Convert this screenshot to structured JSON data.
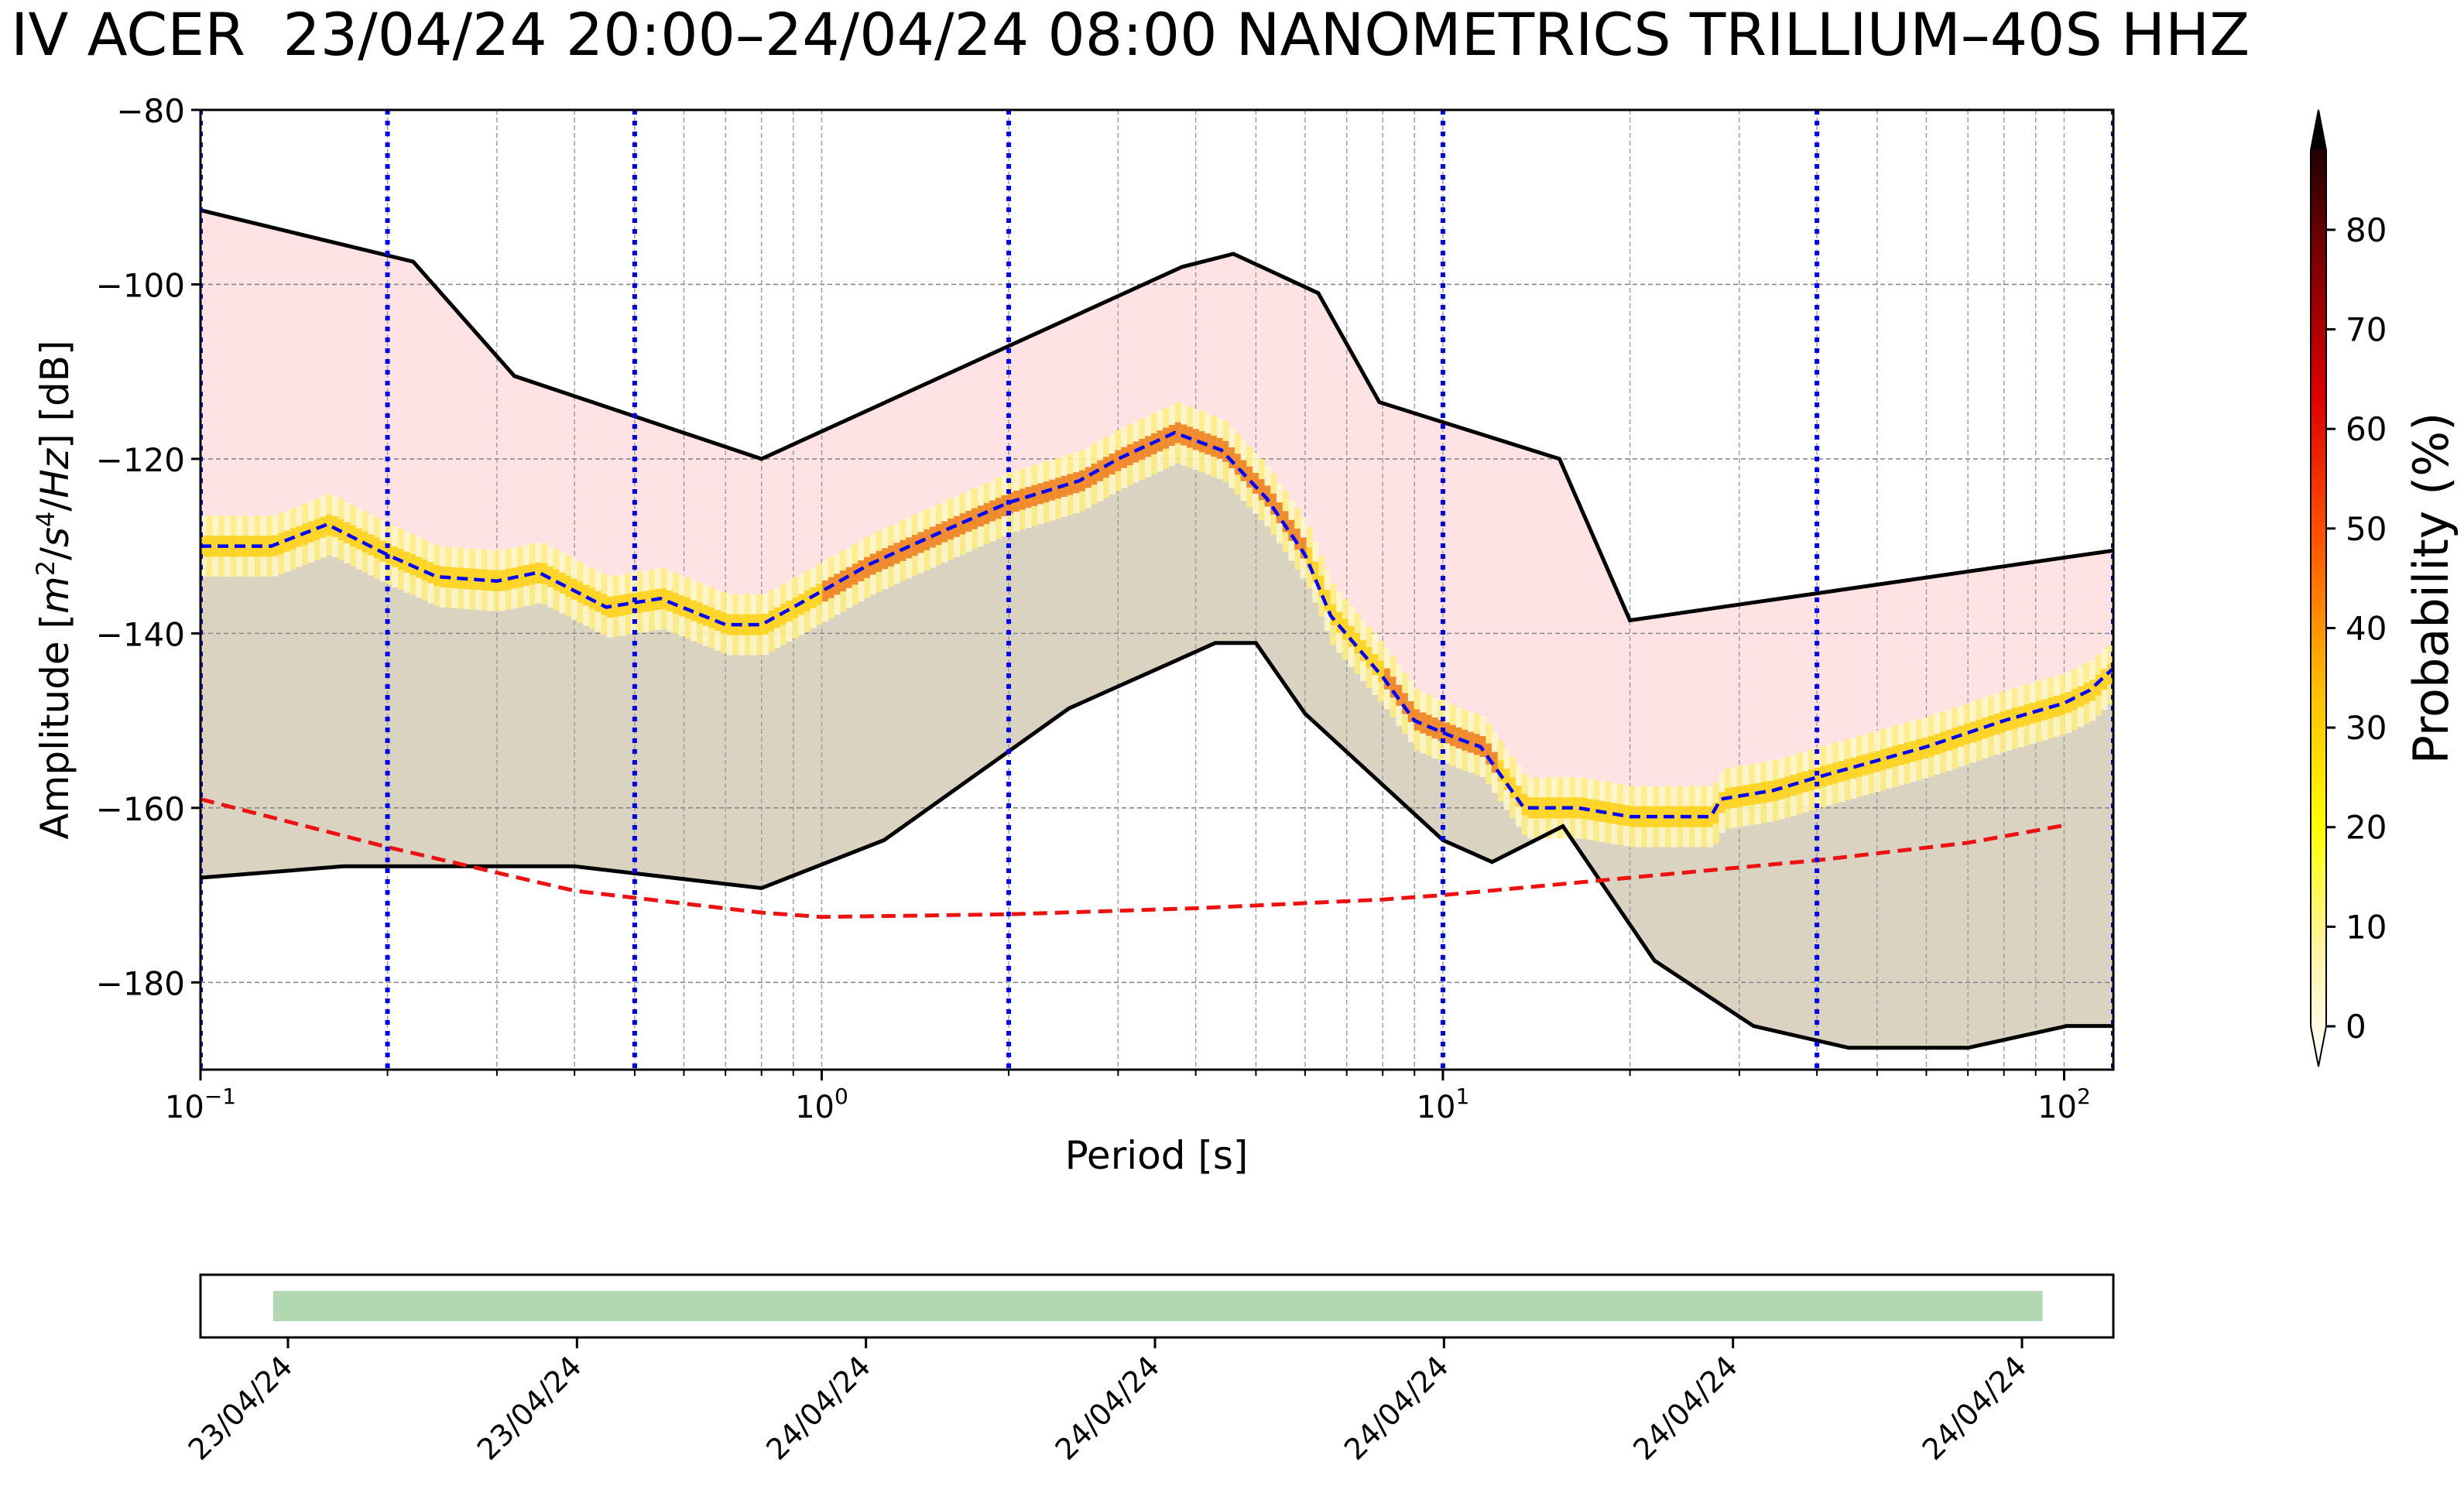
{
  "title": "IV ACER  23/04/24 20:00–24/04/24 08:00 NANOMETRICS TRILLIUM–40S HHZ",
  "chart_data": {
    "type": "ppsd",
    "xlabel": "Period [s]",
    "ylabel": "Amplitude [m²/s⁴/Hz] [dB]",
    "xscale": "log",
    "xlim": [
      0.1,
      120
    ],
    "ylim": [
      -190,
      -80
    ],
    "yticks": [
      -80,
      -100,
      -120,
      -140,
      -160,
      -180
    ],
    "xticks": [
      {
        "value": 0.1,
        "base": "10",
        "exp": "−1"
      },
      {
        "value": 1,
        "base": "10",
        "exp": "0"
      },
      {
        "value": 10,
        "base": "10",
        "exp": "1"
      },
      {
        "value": 100,
        "base": "10",
        "exp": "2"
      }
    ],
    "vlines_periods": [
      0.1,
      0.2,
      0.5,
      2,
      10,
      40,
      120
    ],
    "grid": true,
    "high_model": {
      "name": "upper noise model",
      "color": "#000000",
      "points": [
        [
          0.1,
          -91.5
        ],
        [
          0.22,
          -97.4
        ],
        [
          0.32,
          -110.5
        ],
        [
          0.8,
          -120
        ],
        [
          3.8,
          -98
        ],
        [
          4.6,
          -96.5
        ],
        [
          6.3,
          -101
        ],
        [
          7.9,
          -113.5
        ],
        [
          15.4,
          -120
        ],
        [
          20,
          -138.5
        ],
        [
          120,
          -130.5
        ]
      ]
    },
    "low_model": {
      "name": "lower noise model",
      "color": "#000000",
      "points": [
        [
          0.1,
          -168
        ],
        [
          0.17,
          -166.7
        ],
        [
          0.4,
          -166.7
        ],
        [
          0.8,
          -169.2
        ],
        [
          1.26,
          -163.7
        ],
        [
          2.5,
          -148.6
        ],
        [
          4.3,
          -141.1
        ],
        [
          5.0,
          -141.1
        ],
        [
          6.0,
          -149.2
        ],
        [
          10,
          -163.7
        ],
        [
          12,
          -166.2
        ],
        [
          15.6,
          -162.1
        ],
        [
          21.9,
          -177.5
        ],
        [
          31.6,
          -185
        ],
        [
          45,
          -187.5
        ],
        [
          70,
          -187.5
        ],
        [
          101,
          -185
        ],
        [
          120,
          -185
        ]
      ]
    },
    "mode_curve": {
      "name": "mode",
      "color": "#0000ff",
      "points": [
        [
          0.1,
          -130
        ],
        [
          0.13,
          -130
        ],
        [
          0.16,
          -127.5
        ],
        [
          0.2,
          -131
        ],
        [
          0.24,
          -133.5
        ],
        [
          0.3,
          -134
        ],
        [
          0.35,
          -133
        ],
        [
          0.45,
          -137
        ],
        [
          0.55,
          -136
        ],
        [
          0.7,
          -139
        ],
        [
          0.8,
          -139
        ],
        [
          0.9,
          -137
        ],
        [
          1.2,
          -132
        ],
        [
          1.6,
          -128
        ],
        [
          2.0,
          -125
        ],
        [
          2.6,
          -122.5
        ],
        [
          3.0,
          -120
        ],
        [
          3.7,
          -117
        ],
        [
          4.4,
          -119
        ],
        [
          5.2,
          -124.5
        ],
        [
          6.0,
          -131
        ],
        [
          6.6,
          -138
        ],
        [
          8.0,
          -145
        ],
        [
          9.0,
          -150
        ],
        [
          10.5,
          -152
        ],
        [
          11.5,
          -153
        ],
        [
          13.5,
          -160
        ],
        [
          16.5,
          -160
        ],
        [
          20,
          -161
        ],
        [
          27,
          -161
        ],
        [
          28,
          -159
        ],
        [
          34,
          -158
        ],
        [
          40,
          -156.5
        ],
        [
          60,
          -153
        ],
        [
          80,
          -150
        ],
        [
          100,
          -148
        ],
        [
          110,
          -146.5
        ],
        [
          120,
          -144
        ]
      ]
    },
    "reference_curve": {
      "name": "reference",
      "color": "#ee1111",
      "points": [
        [
          0.1,
          -159
        ],
        [
          0.2,
          -164.5
        ],
        [
          0.4,
          -169.5
        ],
        [
          0.8,
          -172
        ],
        [
          1,
          -172.5
        ],
        [
          2,
          -172.2
        ],
        [
          4,
          -171.5
        ],
        [
          8,
          -170.5
        ],
        [
          10,
          -170
        ],
        [
          20,
          -168
        ],
        [
          40,
          -166
        ],
        [
          70,
          -164
        ],
        [
          100,
          -162
        ]
      ]
    },
    "colorbar": {
      "label": "Probability (%)",
      "ticks": [
        0,
        10,
        20,
        30,
        40,
        50,
        60,
        70,
        80
      ],
      "range": [
        0,
        88
      ],
      "colormap": "hot_r"
    },
    "timeline": {
      "tick_labels": [
        "23/04/24",
        "23/04/24",
        "24/04/24",
        "24/04/24",
        "24/04/24",
        "24/04/24",
        "24/04/24"
      ],
      "coverage_start_fraction": 0.038,
      "coverage_end_fraction": 0.963,
      "coverage_color": "#b2d8b2"
    }
  }
}
